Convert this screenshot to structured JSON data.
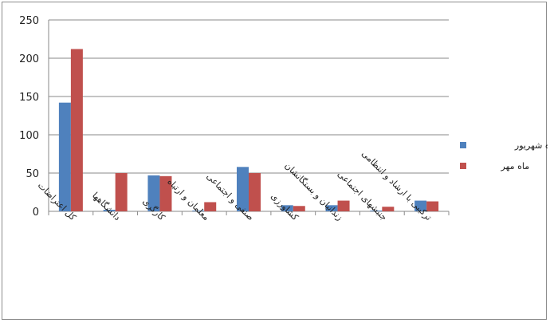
{
  "chart_data": {
    "type": "bar",
    "categories": [
      "کل اعتراضات",
      "دانشگاهها",
      "کارگری",
      "معلمان و ارتباه",
      "صنفی و اجتماعی",
      "کشاورزی",
      "زندانیان و بستگانشان",
      "جنبشهای اجتماعی",
      "ترکیبی با ارشاد و انتظامی"
    ],
    "series": [
      {
        "name": "ماه شهریور",
        "color": "#4f81bd",
        "values": [
          142,
          2,
          47,
          1,
          58,
          8,
          8,
          1,
          14
        ]
      },
      {
        "name": "ماه مهر",
        "color": "#c0504d",
        "values": [
          212,
          50,
          46,
          12,
          50,
          7,
          14,
          6,
          13
        ]
      }
    ],
    "ylim": [
      0,
      250
    ],
    "yticks": [
      "0",
      "50",
      "100",
      "150",
      "200",
      "250"
    ],
    "title": "",
    "xlabel": "",
    "ylabel": "",
    "grid": true,
    "legend_position": "right"
  }
}
